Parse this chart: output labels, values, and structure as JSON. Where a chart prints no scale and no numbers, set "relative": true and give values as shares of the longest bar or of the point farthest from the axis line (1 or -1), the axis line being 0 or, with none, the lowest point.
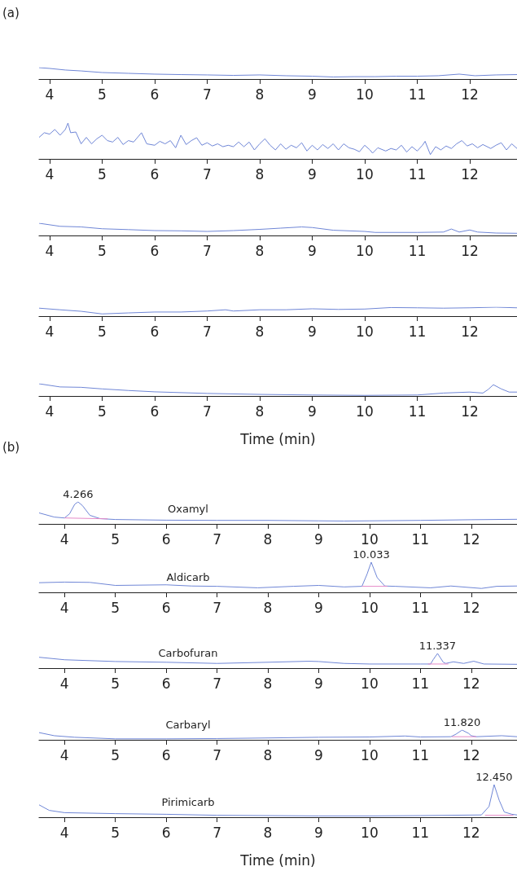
{
  "chart_data": [
    {
      "type": "line",
      "relative": true,
      "annotations": [
        "(a)"
      ],
      "xlim": [
        3.8,
        12.9
      ],
      "xticks": [
        4,
        5,
        6,
        7,
        8,
        9,
        10,
        11,
        12
      ],
      "series": [
        {
          "color": "#6f86d6",
          "x": [
            3.8,
            4.0,
            4.3,
            4.6,
            5.0,
            5.5,
            6,
            6.5,
            7,
            7.5,
            8,
            8.5,
            9,
            9.4,
            9.8,
            10.2,
            10.6,
            11,
            11.4,
            11.8,
            12.1,
            12.5,
            12.9
          ],
          "values": [
            1.0,
            0.93,
            0.79,
            0.71,
            0.57,
            0.5,
            0.43,
            0.39,
            0.36,
            0.32,
            0.36,
            0.29,
            0.25,
            0.18,
            0.21,
            0.21,
            0.25,
            0.25,
            0.29,
            0.43,
            0.29,
            0.36,
            0.39
          ]
        }
      ]
    },
    {
      "type": "line",
      "relative": true,
      "xlim": [
        3.8,
        12.9
      ],
      "xticks": [
        4,
        5,
        6,
        7,
        8,
        9,
        10,
        11,
        12
      ],
      "series": [
        {
          "color": "#6f86d6",
          "x": [
            3.8,
            3.9,
            4.0,
            4.1,
            4.2,
            4.3,
            4.35,
            4.4,
            4.5,
            4.6,
            4.7,
            4.8,
            4.9,
            5.0,
            5.1,
            5.2,
            5.3,
            5.4,
            5.5,
            5.6,
            5.75,
            5.85,
            6.0,
            6.1,
            6.2,
            6.3,
            6.4,
            6.5,
            6.6,
            6.7,
            6.8,
            6.9,
            7.0,
            7.1,
            7.2,
            7.3,
            7.4,
            7.5,
            7.6,
            7.7,
            7.8,
            7.9,
            8.0,
            8.1,
            8.2,
            8.3,
            8.4,
            8.5,
            8.6,
            8.7,
            8.8,
            8.9,
            9.0,
            9.1,
            9.2,
            9.3,
            9.4,
            9.5,
            9.6,
            9.7,
            9.8,
            9.9,
            10.0,
            10.1,
            10.15,
            10.25,
            10.4,
            10.5,
            10.6,
            10.7,
            10.8,
            10.9,
            11.0,
            11.1,
            11.15,
            11.25,
            11.35,
            11.45,
            11.55,
            11.65,
            11.75,
            11.85,
            11.95,
            12.05,
            12.15,
            12.25,
            12.4,
            12.5,
            12.6,
            12.7,
            12.8,
            12.9
          ],
          "values": [
            0.6,
            0.73,
            0.69,
            0.82,
            0.66,
            0.82,
            1.0,
            0.73,
            0.75,
            0.42,
            0.6,
            0.42,
            0.56,
            0.66,
            0.51,
            0.47,
            0.6,
            0.4,
            0.51,
            0.47,
            0.73,
            0.42,
            0.38,
            0.49,
            0.42,
            0.51,
            0.31,
            0.66,
            0.4,
            0.51,
            0.59,
            0.38,
            0.45,
            0.36,
            0.42,
            0.34,
            0.38,
            0.34,
            0.47,
            0.34,
            0.47,
            0.25,
            0.42,
            0.56,
            0.38,
            0.25,
            0.42,
            0.27,
            0.38,
            0.31,
            0.45,
            0.22,
            0.38,
            0.25,
            0.4,
            0.29,
            0.42,
            0.25,
            0.42,
            0.31,
            0.27,
            0.2,
            0.38,
            0.25,
            0.16,
            0.31,
            0.22,
            0.29,
            0.25,
            0.38,
            0.19,
            0.34,
            0.22,
            0.38,
            0.49,
            0.12,
            0.34,
            0.25,
            0.36,
            0.29,
            0.42,
            0.51,
            0.36,
            0.42,
            0.31,
            0.4,
            0.29,
            0.38,
            0.45,
            0.25,
            0.42,
            0.29
          ]
        }
      ]
    },
    {
      "type": "line",
      "relative": true,
      "xlim": [
        3.8,
        12.9
      ],
      "xticks": [
        4,
        5,
        6,
        7,
        8,
        9,
        10,
        11,
        12
      ],
      "series": [
        {
          "color": "#6f86d6",
          "x": [
            3.8,
            4.2,
            4.6,
            5.0,
            5.5,
            6,
            6.5,
            7,
            7.5,
            8,
            8.4,
            8.8,
            9.0,
            9.4,
            10,
            10.2,
            11,
            11.5,
            11.65,
            11.8,
            12.0,
            12.15,
            12.5,
            12.9
          ],
          "values": [
            1.0,
            0.75,
            0.7,
            0.55,
            0.48,
            0.4,
            0.38,
            0.33,
            0.4,
            0.5,
            0.6,
            0.7,
            0.65,
            0.43,
            0.33,
            0.25,
            0.25,
            0.28,
            0.53,
            0.28,
            0.45,
            0.28,
            0.2,
            0.18
          ]
        }
      ]
    },
    {
      "type": "line",
      "relative": true,
      "xlim": [
        3.8,
        12.9
      ],
      "xticks": [
        4,
        5,
        6,
        7,
        8,
        9,
        10,
        11,
        12
      ],
      "series": [
        {
          "color": "#6f86d6",
          "x": [
            3.8,
            4.2,
            4.6,
            5.0,
            5.5,
            6,
            6.5,
            7,
            7.35,
            7.5,
            8,
            8.5,
            9,
            9.5,
            10,
            10.5,
            11,
            11.5,
            12,
            12.5,
            12.9
          ],
          "values": [
            0.89,
            0.71,
            0.54,
            0.25,
            0.36,
            0.46,
            0.46,
            0.57,
            0.71,
            0.57,
            0.71,
            0.71,
            0.82,
            0.75,
            0.79,
            0.96,
            0.93,
            0.89,
            0.93,
            1.0,
            0.93
          ]
        }
      ]
    },
    {
      "type": "line",
      "relative": true,
      "xlabel": "Time (min)",
      "xlim": [
        3.8,
        12.9
      ],
      "xticks": [
        4,
        5,
        6,
        7,
        8,
        9,
        10,
        11,
        12
      ],
      "series": [
        {
          "color": "#6f86d6",
          "x": [
            3.8,
            4.2,
            4.6,
            5.0,
            5.5,
            6,
            7,
            8,
            9,
            10,
            11,
            11.5,
            12.0,
            12.25,
            12.35,
            12.45,
            12.6,
            12.75,
            12.9
          ],
          "values": [
            1.0,
            0.74,
            0.71,
            0.58,
            0.45,
            0.34,
            0.21,
            0.13,
            0.08,
            0.05,
            0.08,
            0.24,
            0.32,
            0.24,
            0.53,
            0.92,
            0.58,
            0.32,
            0.32
          ]
        }
      ]
    },
    {
      "type": "line",
      "relative": true,
      "title": "Oxamyl",
      "annotations": [
        "(b)",
        {
          "text": "4.266",
          "x": 4.266,
          "y": 1.0
        }
      ],
      "xlim": [
        3.5,
        12.9
      ],
      "xticks": [
        4,
        5,
        6,
        7,
        8,
        9,
        10,
        11,
        12
      ],
      "series": [
        {
          "color": "#6f86d6",
          "x": [
            3.5,
            3.8,
            4.0,
            4.1,
            4.2,
            4.266,
            4.35,
            4.5,
            4.7,
            5.0,
            6,
            7,
            8,
            9,
            9.5,
            10,
            11,
            12,
            12.9
          ],
          "values": [
            0.5,
            0.31,
            0.27,
            0.46,
            0.89,
            1.0,
            0.84,
            0.39,
            0.24,
            0.2,
            0.17,
            0.16,
            0.16,
            0.14,
            0.13,
            0.14,
            0.16,
            0.19,
            0.21
          ]
        },
        {
          "color": "#e58ac8",
          "x": [
            4.0,
            4.85
          ],
          "values": [
            0.27,
            0.23
          ]
        }
      ]
    },
    {
      "type": "line",
      "relative": true,
      "title": "Aldicarb",
      "annotations": [
        {
          "text": "10.033",
          "x": 10.033,
          "y": 1.0
        }
      ],
      "xlim": [
        3.5,
        12.9
      ],
      "xticks": [
        4,
        5,
        6,
        7,
        8,
        9,
        10,
        11,
        12
      ],
      "series": [
        {
          "color": "#6f86d6",
          "x": [
            3.5,
            4.0,
            4.5,
            5.0,
            6,
            6.5,
            7,
            7.8,
            8.5,
            9,
            9.5,
            9.85,
            9.95,
            10.033,
            10.15,
            10.3,
            10.5,
            11.2,
            11.6,
            12.2,
            12.5,
            12.9
          ],
          "values": [
            0.32,
            0.34,
            0.33,
            0.23,
            0.25,
            0.21,
            0.2,
            0.15,
            0.2,
            0.23,
            0.18,
            0.2,
            0.6,
            1.0,
            0.49,
            0.21,
            0.2,
            0.15,
            0.21,
            0.13,
            0.2,
            0.21
          ]
        },
        {
          "color": "#e58ac8",
          "x": [
            9.85,
            10.35
          ],
          "values": [
            0.2,
            0.2
          ]
        }
      ]
    },
    {
      "type": "line",
      "relative": true,
      "title": "Carbofuran",
      "annotations": [
        {
          "text": "11.337",
          "x": 11.337,
          "y": 1.0
        }
      ],
      "xlim": [
        3.5,
        12.9
      ],
      "xticks": [
        4,
        5,
        6,
        7,
        8,
        9,
        10,
        11,
        12
      ],
      "series": [
        {
          "color": "#6f86d6",
          "x": [
            3.5,
            4,
            5,
            6,
            7,
            8,
            8.8,
            9.0,
            9.5,
            10,
            11,
            11.2,
            11.25,
            11.337,
            11.45,
            11.5,
            11.65,
            11.85,
            12.05,
            12.25,
            12.9
          ],
          "values": [
            0.74,
            0.57,
            0.45,
            0.4,
            0.32,
            0.4,
            0.47,
            0.45,
            0.32,
            0.28,
            0.28,
            0.28,
            0.57,
            1.0,
            0.4,
            0.32,
            0.43,
            0.32,
            0.47,
            0.28,
            0.26
          ]
        },
        {
          "color": "#e58ac8",
          "x": [
            11.15,
            11.55
          ],
          "values": [
            0.28,
            0.28
          ]
        }
      ]
    },
    {
      "type": "line",
      "relative": true,
      "title": "Carbaryl",
      "annotations": [
        {
          "text": "11.820",
          "x": 11.82,
          "y": 1.0
        }
      ],
      "xlim": [
        3.5,
        12.9
      ],
      "xticks": [
        4,
        5,
        6,
        7,
        8,
        9,
        10,
        11,
        12
      ],
      "series": [
        {
          "color": "#6f86d6",
          "x": [
            3.5,
            3.8,
            4.2,
            5,
            6,
            7,
            8,
            9,
            10,
            10.7,
            11,
            11.6,
            11.7,
            11.82,
            11.95,
            12.0,
            12.1,
            12.6,
            12.9
          ],
          "values": [
            0.74,
            0.42,
            0.26,
            0.1,
            0.1,
            0.13,
            0.19,
            0.26,
            0.29,
            0.39,
            0.29,
            0.32,
            0.58,
            1.0,
            0.65,
            0.42,
            0.32,
            0.42,
            0.32
          ]
        },
        {
          "color": "#e58ac8",
          "x": [
            11.62,
            12.1
          ],
          "values": [
            0.32,
            0.32
          ]
        }
      ]
    },
    {
      "type": "line",
      "relative": true,
      "title": "Pirimicarb",
      "xlabel": "Time (min)",
      "annotations": [
        {
          "text": "12.450",
          "x": 12.45,
          "y": 1.0
        }
      ],
      "xlim": [
        3.5,
        12.9
      ],
      "xticks": [
        4,
        5,
        6,
        7,
        8,
        9,
        10,
        11,
        12
      ],
      "series": [
        {
          "color": "#6f86d6",
          "x": [
            3.5,
            3.7,
            4,
            5,
            6,
            7,
            8,
            9,
            10,
            11,
            12.2,
            12.35,
            12.45,
            12.55,
            12.65,
            12.8,
            12.9
          ],
          "values": [
            0.38,
            0.21,
            0.14,
            0.11,
            0.09,
            0.06,
            0.05,
            0.04,
            0.04,
            0.05,
            0.07,
            0.33,
            1.0,
            0.52,
            0.16,
            0.09,
            0.07
          ]
        },
        {
          "color": "#e58ac8",
          "x": [
            12.27,
            12.83
          ],
          "values": [
            0.06,
            0.06
          ]
        }
      ]
    }
  ]
}
